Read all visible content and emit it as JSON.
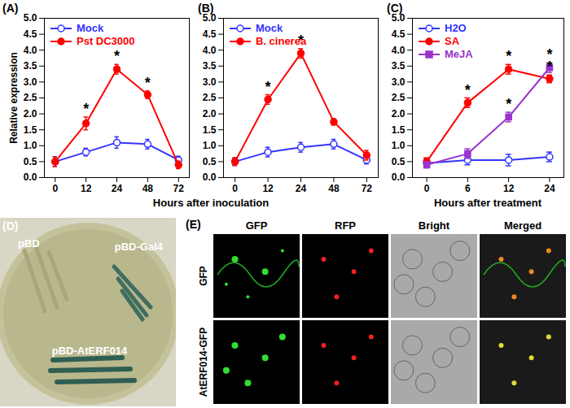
{
  "chart_data": [
    {
      "type": "line",
      "title": "(A)",
      "ylabel": "Relative expression",
      "xlabel": "Hours after inoculation",
      "categories": [
        "0",
        "12",
        "24",
        "48",
        "72"
      ],
      "ylim": [
        0,
        5
      ],
      "yticks": [
        {
          "value": 0,
          "label": "0.0"
        },
        {
          "value": 0.5,
          "label": "0.5"
        },
        {
          "value": 1,
          "label": "1.0"
        },
        {
          "value": 1.5,
          "label": "1.5"
        },
        {
          "value": 2,
          "label": "2.0"
        },
        {
          "value": 2.5,
          "label": "2.5"
        },
        {
          "value": 3,
          "label": "3.0"
        },
        {
          "value": 3.5,
          "label": "3.5"
        },
        {
          "value": 4,
          "label": "4.0"
        },
        {
          "value": 4.5,
          "label": "4.5"
        },
        {
          "value": 5,
          "label": "5.0"
        }
      ],
      "legend": "top-left",
      "series": [
        {
          "name": "Mock",
          "color": "#3333ff",
          "marker": "open_circle",
          "values": [
            0.5,
            0.8,
            1.1,
            1.05,
            0.55
          ],
          "errors": [
            0.15,
            0.12,
            0.18,
            0.15,
            0.12
          ]
        },
        {
          "name": "Pst DC3000",
          "color": "#ff0000",
          "marker": "circle",
          "values": [
            0.5,
            1.7,
            3.4,
            2.6,
            0.4
          ],
          "errors": [
            0.15,
            0.2,
            0.15,
            0.12,
            0.12
          ]
        }
      ],
      "annotations": [
        {
          "series": "Pst DC3000",
          "category": "12",
          "text": "*"
        },
        {
          "series": "Pst DC3000",
          "category": "24",
          "text": "*"
        },
        {
          "series": "Pst DC3000",
          "category": "48",
          "text": "*"
        }
      ]
    },
    {
      "type": "line",
      "title": "(B)",
      "categories": [
        "0",
        "12",
        "24",
        "48",
        "72"
      ],
      "ylim": [
        0,
        5
      ],
      "yticks": [
        {
          "value": 0,
          "label": "0.0"
        },
        {
          "value": 0.5,
          "label": "0.5"
        },
        {
          "value": 1,
          "label": "1.0"
        },
        {
          "value": 1.5,
          "label": "1.5"
        },
        {
          "value": 2,
          "label": "2.0"
        },
        {
          "value": 2.5,
          "label": "2.5"
        },
        {
          "value": 3,
          "label": "3.0"
        },
        {
          "value": 3.5,
          "label": "3.5"
        },
        {
          "value": 4,
          "label": "4.0"
        },
        {
          "value": 4.5,
          "label": "4.5"
        },
        {
          "value": 5,
          "label": "5.0"
        }
      ],
      "legend": "top-left",
      "series": [
        {
          "name": "Mock",
          "color": "#3333ff",
          "marker": "open_circle",
          "values": [
            0.5,
            0.8,
            0.95,
            1.05,
            0.55
          ],
          "errors": [
            0.12,
            0.15,
            0.15,
            0.15,
            0.12
          ]
        },
        {
          "name": "B. cinerea",
          "color": "#ff0000",
          "marker": "circle",
          "values": [
            0.5,
            2.45,
            3.9,
            1.75,
            0.7
          ],
          "errors": [
            0.12,
            0.15,
            0.15,
            0.1,
            0.15
          ]
        }
      ],
      "annotations": [
        {
          "series": "B. cinerea",
          "category": "12",
          "text": "*"
        },
        {
          "series": "B. cinerea",
          "category": "24",
          "text": "*"
        }
      ]
    },
    {
      "type": "line",
      "title": "(C)",
      "xlabel": "Hours after treatment",
      "categories": [
        "0",
        "6",
        "12",
        "24"
      ],
      "ylim": [
        0,
        5
      ],
      "yticks": [
        {
          "value": 0,
          "label": "0.0"
        },
        {
          "value": 0.5,
          "label": "0.5"
        },
        {
          "value": 1,
          "label": "1.0"
        },
        {
          "value": 1.5,
          "label": "1.5"
        },
        {
          "value": 2,
          "label": "2.0"
        },
        {
          "value": 2.5,
          "label": "2.5"
        },
        {
          "value": 3,
          "label": "3.0"
        },
        {
          "value": 3.5,
          "label": "3.5"
        },
        {
          "value": 4,
          "label": "4.0"
        },
        {
          "value": 4.5,
          "label": "4.5"
        },
        {
          "value": 5,
          "label": "5.0"
        }
      ],
      "legend": "top-left",
      "series": [
        {
          "name": "H2O",
          "color": "#3333ff",
          "marker": "open_circle",
          "values": [
            0.45,
            0.55,
            0.55,
            0.65
          ],
          "errors": [
            0.12,
            0.15,
            0.18,
            0.15
          ]
        },
        {
          "name": "SA",
          "color": "#ff0000",
          "marker": "circle",
          "values": [
            0.5,
            2.35,
            3.4,
            3.1
          ],
          "errors": [
            0.12,
            0.15,
            0.15,
            0.12
          ]
        },
        {
          "name": "MeJA",
          "color": "#9933cc",
          "marker": "square",
          "values": [
            0.4,
            0.75,
            1.9,
            3.45
          ],
          "errors": [
            0.1,
            0.15,
            0.15,
            0.15
          ]
        }
      ],
      "annotations": [
        {
          "series": "SA",
          "category": "6",
          "text": "*"
        },
        {
          "series": "SA",
          "category": "12",
          "text": "*"
        },
        {
          "series": "SA",
          "category": "24",
          "text": "*"
        },
        {
          "series": "MeJA",
          "category": "12",
          "text": "*"
        },
        {
          "series": "MeJA",
          "category": "24",
          "text": "*"
        }
      ]
    }
  ],
  "panels": [
    {
      "title": "(D)",
      "streaks": [
        "pBD",
        "pBD-Gal4",
        "pBD-AtERF014"
      ]
    },
    {
      "title": "(E)",
      "columns": [
        "GFP",
        "RFP",
        "Bright",
        "Merged"
      ],
      "rows": [
        "GFP",
        "AtERF014-GFP"
      ]
    }
  ]
}
